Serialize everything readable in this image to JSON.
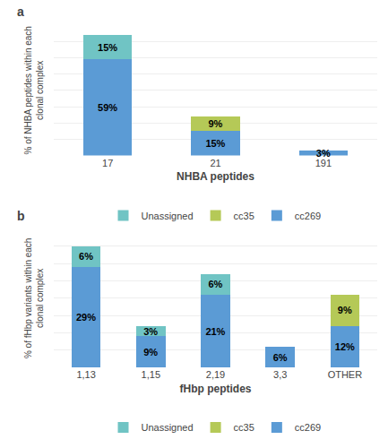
{
  "chart_data": [
    {
      "type": "bar",
      "title": "a",
      "stacked": true,
      "data_labels": true,
      "grid": true,
      "legend": "bottom",
      "tick_labels": "x",
      "categories": [
        "17",
        "21",
        "191"
      ],
      "series": [
        {
          "name": "cc269",
          "color": "#5b9bd5",
          "values": [
            59,
            15,
            3
          ],
          "value_labels": [
            "59%",
            "15%",
            "3%"
          ]
        },
        {
          "name": "cc35",
          "color": "#b5c957",
          "values": [
            0,
            9,
            0
          ],
          "value_labels": [
            null,
            "9%",
            null
          ]
        },
        {
          "name": "Unassigned",
          "color": "#70c4c4",
          "values": [
            15,
            0,
            0
          ],
          "value_labels": [
            "15%",
            null,
            null
          ]
        }
      ],
      "xlabel": "NHBA peptides",
      "ylabel": "% of NHBA peptides within each\nclonal complex",
      "ylim": [
        0,
        80
      ],
      "yticks": [
        0,
        10,
        20,
        30,
        40,
        50,
        60,
        70,
        80
      ]
    },
    {
      "type": "bar",
      "title": "b",
      "stacked": true,
      "data_labels": true,
      "grid": true,
      "legend": "bottom",
      "tick_labels": "x",
      "categories": [
        "1,13",
        "1,15",
        "2,19",
        "3,3",
        "OTHER"
      ],
      "series": [
        {
          "name": "cc269",
          "color": "#5b9bd5",
          "values": [
            29,
            9,
            21,
            6,
            12
          ],
          "value_labels": [
            "29%",
            "9%",
            "21%",
            "6%",
            "12%"
          ]
        },
        {
          "name": "cc35",
          "color": "#b5c957",
          "values": [
            0,
            0,
            0,
            0,
            9
          ],
          "value_labels": [
            null,
            null,
            null,
            null,
            "9%"
          ]
        },
        {
          "name": "Unassigned",
          "color": "#70c4c4",
          "values": [
            6,
            3,
            6,
            0,
            0
          ],
          "value_labels": [
            "6%",
            "3%",
            "6%",
            null,
            null
          ]
        }
      ],
      "xlabel": "fHbp peptides",
      "ylabel": "% of fHbp variants within each\nclonal complex",
      "ylim": [
        0,
        40
      ],
      "yticks": [
        0,
        5,
        10,
        15,
        20,
        25,
        30,
        35,
        40
      ]
    }
  ]
}
